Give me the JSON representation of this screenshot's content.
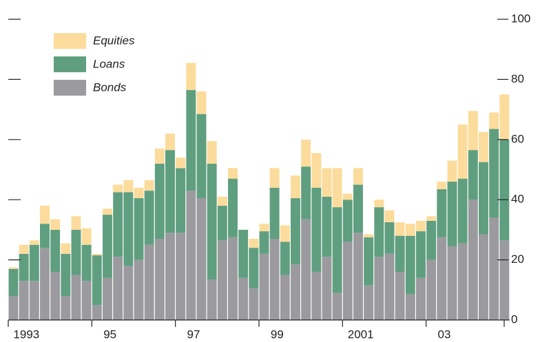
{
  "chart_data": {
    "type": "stacked_bar",
    "categories": [
      "1993",
      null,
      null,
      null,
      null,
      null,
      null,
      null,
      "95",
      null,
      null,
      null,
      null,
      null,
      null,
      null,
      "97",
      null,
      null,
      null,
      null,
      null,
      null,
      null,
      "99",
      null,
      null,
      null,
      null,
      null,
      null,
      null,
      "2001",
      null,
      null,
      null,
      null,
      null,
      null,
      null,
      "03",
      null,
      null,
      null,
      null,
      null,
      null,
      null
    ],
    "series": [
      {
        "name": "Bonds",
        "color": "#9b9a9f",
        "values": [
          8,
          13,
          13,
          24,
          16,
          8,
          15,
          13,
          5,
          14,
          21,
          18,
          20,
          25,
          27,
          29,
          29,
          43,
          40.5,
          13.5,
          26.5,
          27.5,
          14,
          10.5,
          22,
          27,
          15,
          18.5,
          33.5,
          16,
          21,
          9,
          26,
          29,
          11.5,
          21,
          22,
          16,
          8.5,
          14,
          20,
          27.5,
          24.5,
          25.5,
          40,
          28.5,
          34,
          26.5
        ]
      },
      {
        "name": "Loans",
        "color": "#5f9f80",
        "values": [
          9,
          9,
          12,
          8,
          14,
          14,
          15,
          12,
          16.5,
          21,
          21.5,
          24.5,
          20.5,
          18,
          25,
          27.5,
          21.5,
          33.5,
          28,
          38.5,
          11.5,
          19.5,
          16,
          13.5,
          7.5,
          17,
          11,
          22,
          17.5,
          28,
          20,
          28.5,
          14,
          16,
          16,
          16.5,
          10.5,
          12,
          19.5,
          15.5,
          13,
          16,
          21.5,
          21.5,
          16.5,
          24,
          29.5,
          33.5
        ]
      },
      {
        "name": "Equities",
        "color": "#fcdc9c",
        "values": [
          0.5,
          3,
          1.5,
          6,
          3.5,
          3.5,
          4.5,
          5.5,
          0.5,
          2,
          2.5,
          4,
          3.5,
          3.5,
          5,
          5.5,
          3.5,
          9,
          7.5,
          7.5,
          3,
          3.5,
          0,
          3,
          2.5,
          6.5,
          5.5,
          7.5,
          9,
          11.5,
          9.5,
          13,
          2,
          5.5,
          1,
          2.5,
          4,
          4.5,
          4,
          3.5,
          1.5,
          2.5,
          7,
          18,
          13,
          10,
          5.5,
          15
        ]
      }
    ],
    "ylim": [
      0,
      100
    ],
    "yticks": [
      0,
      20,
      40,
      60,
      80,
      100
    ],
    "legend": "upper left"
  }
}
